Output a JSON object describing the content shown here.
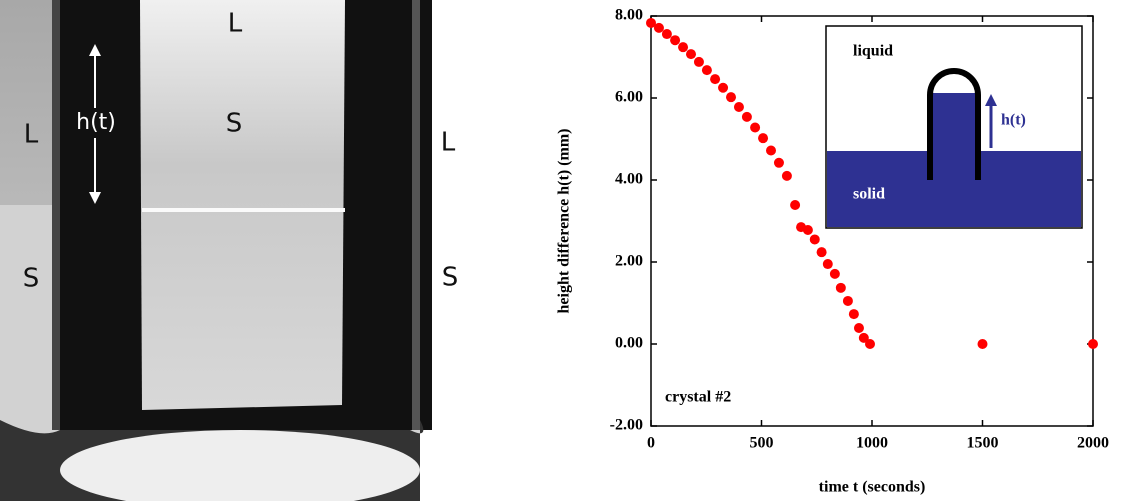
{
  "photo": {
    "labels": [
      "L",
      "L",
      "L",
      "S",
      "S",
      "S",
      "h(t)"
    ]
  },
  "chart_data": {
    "type": "scatter",
    "xlabel": "time t (seconds)",
    "ylabel": "height difference h(t)  (mm)",
    "annotation": "crystal #2",
    "inset": {
      "top_label": "liquid",
      "bottom_label": "solid",
      "arrow_label": "h(t)"
    },
    "xlim": [
      0,
      2000
    ],
    "xticks": [
      0,
      500,
      1000,
      1500,
      2000
    ],
    "ylim": [
      -2,
      8
    ],
    "yticks": [
      {
        "value": -2,
        "label": "-2.00"
      },
      {
        "value": 0,
        "label": "0.00"
      },
      {
        "value": 2,
        "label": "2.00"
      },
      {
        "value": 4,
        "label": "4.00"
      },
      {
        "value": 6,
        "label": "6.00"
      },
      {
        "value": 8,
        "label": "8.00"
      }
    ],
    "color": "#ff0000",
    "x": [
      0,
      36,
      72,
      109,
      145,
      181,
      217,
      253,
      290,
      326,
      362,
      398,
      434,
      471,
      507,
      543,
      579,
      615,
      652,
      679,
      710,
      741,
      772,
      800,
      832,
      859,
      891,
      918,
      941,
      963,
      991,
      1500,
      2000
    ],
    "values": [
      7.83,
      7.71,
      7.56,
      7.41,
      7.24,
      7.07,
      6.88,
      6.68,
      6.46,
      6.25,
      6.02,
      5.78,
      5.54,
      5.28,
      5.02,
      4.72,
      4.42,
      4.1,
      3.39,
      2.85,
      2.78,
      2.55,
      2.24,
      1.95,
      1.71,
      1.37,
      1.05,
      0.73,
      0.39,
      0.15,
      0,
      0,
      0
    ]
  }
}
